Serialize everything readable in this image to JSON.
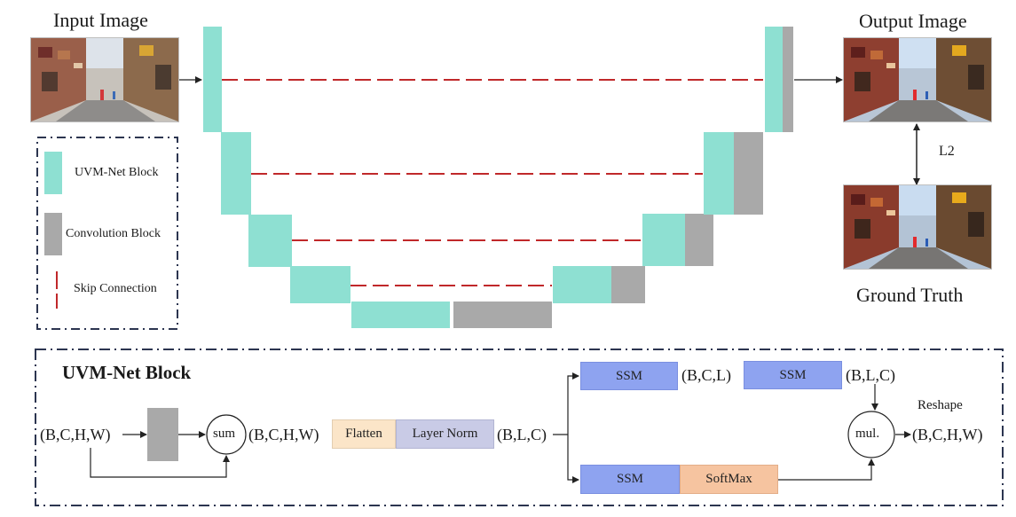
{
  "top": {
    "input_title": "Input Image",
    "output_title": "Output Image",
    "ground_truth_title": "Ground Truth",
    "loss_label": "L2"
  },
  "legend": {
    "uvm_label": "UVM-Net Block",
    "conv_label": "Convolution Block",
    "skip_label": "Skip Connection"
  },
  "block_detail": {
    "heading": "UVM-Net Block",
    "input_shape": "(B,C,H,W)",
    "sum_label": "sum",
    "after_sum_shape": "(B,C,H,W)",
    "flatten_label": "Flatten",
    "layernorm_label": "Layer Norm",
    "blc_shape": "(B,L,C)",
    "ssm_label": "SSM",
    "bcl_shape": "(B,C,L)",
    "ssm2_label": "SSM",
    "blc2_shape": "(B,L,C)",
    "ssm3_label": "SSM",
    "softmax_label": "SoftMax",
    "mul_label": "mul.",
    "reshape_label": "Reshape",
    "output_shape": "(B,C,H,W)"
  },
  "colors": {
    "uvm_block": "#8ee0d2",
    "conv_block": "#a9a9a9",
    "skip": "#c0282a",
    "ssm": "#8ea3f0",
    "flatten": "#fbe5c8",
    "layernorm": "#c9cbe6",
    "softmax": "#f6c4a0",
    "border": "#2c3550"
  }
}
